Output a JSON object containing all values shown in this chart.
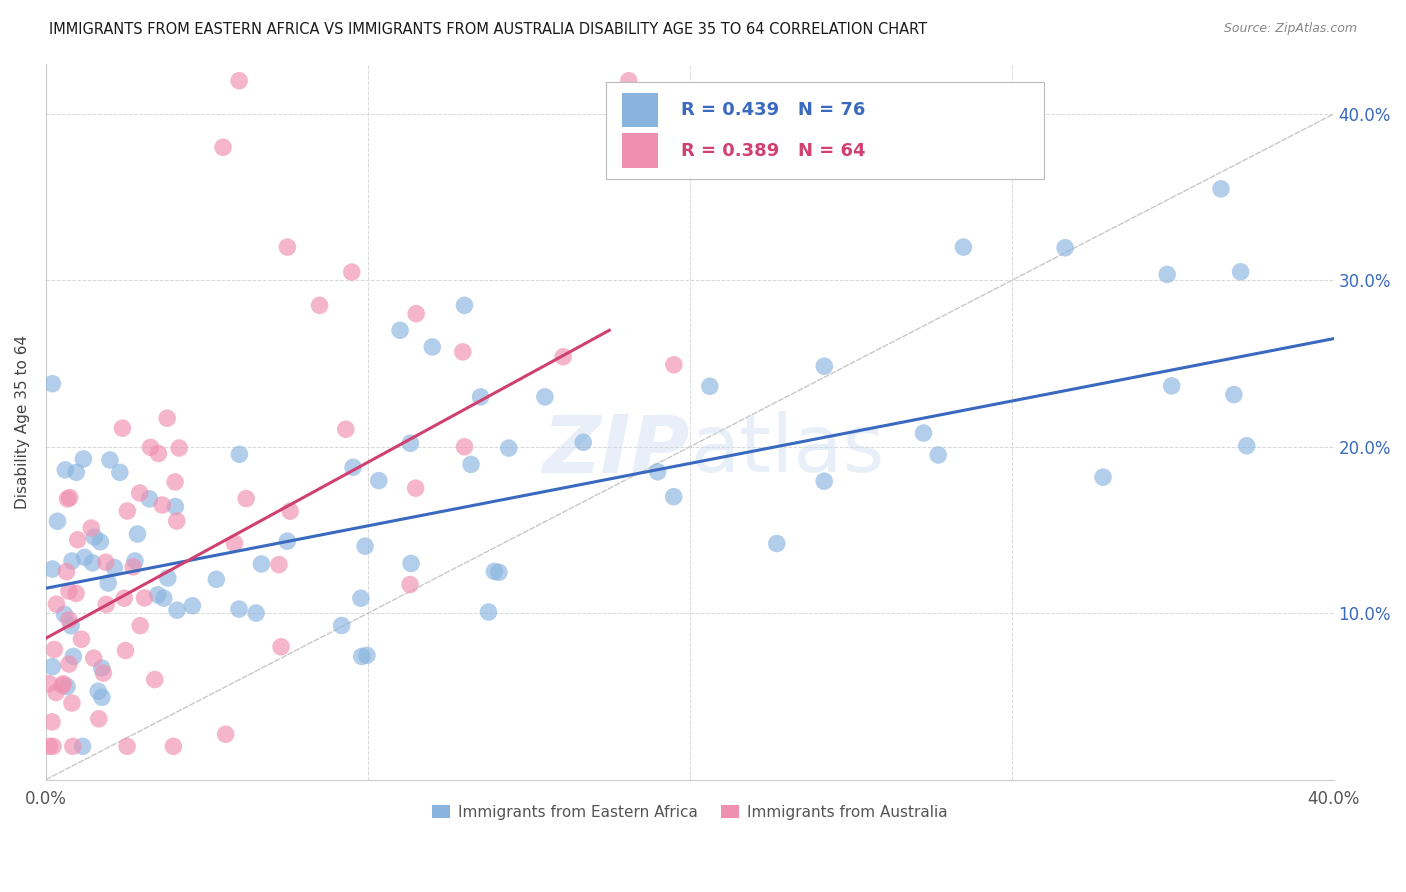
{
  "title": "IMMIGRANTS FROM EASTERN AFRICA VS IMMIGRANTS FROM AUSTRALIA DISABILITY AGE 35 TO 64 CORRELATION CHART",
  "source": "Source: ZipAtlas.com",
  "ylabel": "Disability Age 35 to 64",
  "legend_label_blue": "Immigrants from Eastern Africa",
  "legend_label_pink": "Immigrants from Australia",
  "blue_color": "#8ab4e0",
  "pink_color": "#f090b0",
  "trendline_blue_color": "#3a6abf",
  "trendline_pink_color": "#d04070",
  "diagonal_color": "#c8c8c8",
  "grid_color": "#d8d8d8",
  "xlim": [
    0.0,
    0.4
  ],
  "ylim": [
    0.0,
    0.43
  ],
  "blue_trend_x0": 0.0,
  "blue_trend_x1": 0.4,
  "blue_trend_y0": 0.115,
  "blue_trend_y1": 0.265,
  "pink_trend_x0": 0.0,
  "pink_trend_x1": 0.175,
  "pink_trend_y0": 0.085,
  "pink_trend_y1": 0.27,
  "watermark_text": "ZIPatlas",
  "right_ytick_color": "#3a6abf",
  "axis_label_color": "#555555"
}
